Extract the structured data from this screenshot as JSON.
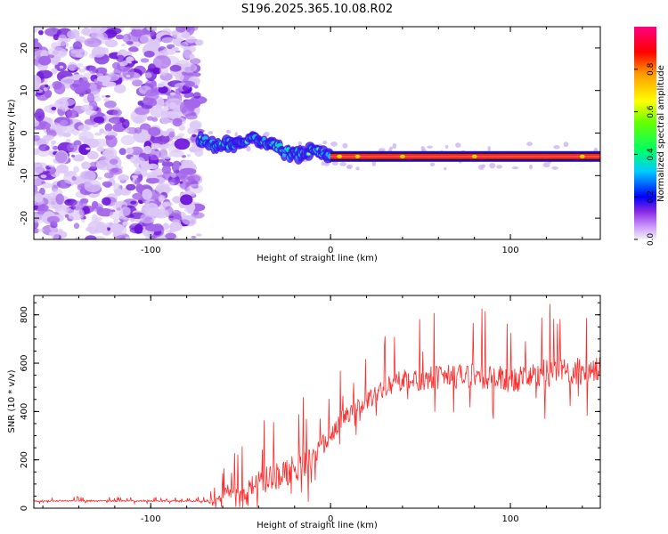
{
  "title": "S196.2025.365.10.08.R02",
  "chart_data": [
    {
      "type": "heatmap",
      "xlabel": "Height of straight line (km)",
      "ylabel": "Frequency (Hz)",
      "xlim": [
        -165,
        150
      ],
      "ylim": [
        -25,
        25
      ],
      "xticks": [
        -100,
        0,
        100
      ],
      "yticks": [
        -20,
        -10,
        0,
        10,
        20
      ],
      "description_of_features": {
        "noise_region_x": [
          -165,
          -73
        ],
        "signal_onset_x": -73,
        "steady_tone_start_x": 0,
        "steady_tone_freq_hz": -5.5
      },
      "signal_track": {
        "x": [
          -73,
          -65,
          -55,
          -45,
          -38,
          -30,
          -22,
          -15,
          -10,
          -5,
          0,
          20,
          40,
          60,
          80,
          100,
          120,
          140,
          150
        ],
        "freq": [
          -1.5,
          -2.5,
          -2.5,
          -1.5,
          -1.8,
          -3.5,
          -5.0,
          -5.0,
          -3.5,
          -4.5,
          -5.5,
          -5.5,
          -5.5,
          -5.5,
          -5.5,
          -5.5,
          -5.5,
          -5.5,
          -5.5
        ]
      },
      "colorbar": {
        "label": "Normalized spectral amplitude",
        "range": [
          0,
          1
        ],
        "ticks": [
          0.0,
          0.2,
          0.4,
          0.6,
          0.8
        ]
      }
    },
    {
      "type": "line",
      "xlabel": "Height of straight line (km)",
      "ylabel": "SNR (10 * v/v)",
      "xlim": [
        -165,
        150
      ],
      "ylim": [
        0,
        880
      ],
      "xticks": [
        -100,
        0,
        100
      ],
      "yticks": [
        0,
        200,
        400,
        600,
        800
      ],
      "color": "#ff2a2a",
      "series": [
        {
          "name": "SNR",
          "x": [
            -165,
            -140,
            -110,
            -90,
            -70,
            -62,
            -58,
            -55,
            -50,
            -45,
            -40,
            -35,
            -30,
            -25,
            -20,
            -15,
            -10,
            -5,
            0,
            5,
            10,
            20,
            30,
            40,
            60,
            80,
            100,
            120,
            135,
            150
          ],
          "baseline": [
            30,
            30,
            30,
            30,
            28,
            35,
            80,
            70,
            60,
            90,
            110,
            120,
            130,
            150,
            160,
            180,
            200,
            260,
            300,
            360,
            390,
            440,
            500,
            530,
            540,
            550,
            530,
            560,
            560,
            580
          ],
          "spike_amplitude": [
            15,
            15,
            15,
            15,
            15,
            100,
            110,
            130,
            160,
            180,
            220,
            250,
            260,
            260,
            260,
            240,
            230,
            200,
            180,
            160,
            150,
            160,
            170,
            200,
            230,
            230,
            240,
            260,
            280,
            250
          ]
        }
      ]
    }
  ]
}
